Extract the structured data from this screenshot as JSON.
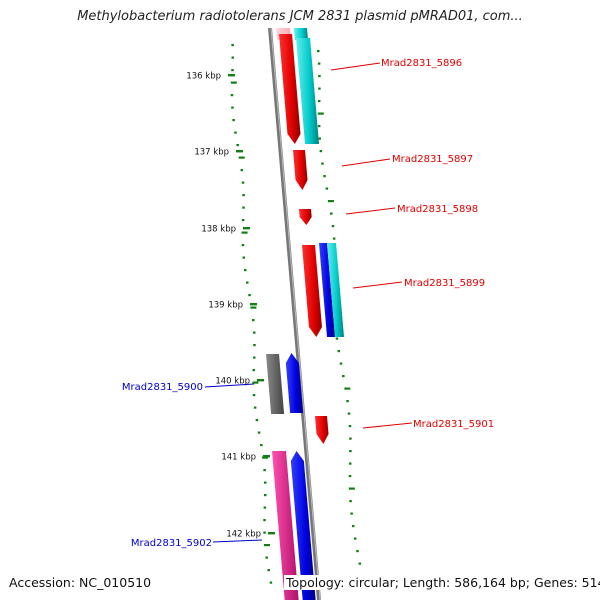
{
  "title": "Methylobacterium radiotolerans JCM 2831 plasmid pMRAD01, com...",
  "footer": {
    "accession": "Accession: NC_010510",
    "summary": "Topology: circular; Length: 586,164 bp; Genes: 514"
  },
  "ruler": {
    "unit": "kbp",
    "labels": [
      "136 kbp",
      "137 kbp",
      "138 kbp",
      "139 kbp",
      "140 kbp",
      "141 kbp",
      "142 kbp"
    ]
  },
  "genes": [
    {
      "id": "Mrad2831_5896",
      "strand": "forward",
      "color": "#e00000"
    },
    {
      "id": "Mrad2831_5897",
      "strand": "forward",
      "color": "#e00000"
    },
    {
      "id": "Mrad2831_5898",
      "strand": "forward",
      "color": "#e00000"
    },
    {
      "id": "Mrad2831_5899",
      "strand": "forward",
      "color": "#e00000"
    },
    {
      "id": "Mrad2831_5900",
      "strand": "reverse",
      "color": "#0000cc"
    },
    {
      "id": "Mrad2831_5901",
      "strand": "forward",
      "color": "#e00000"
    },
    {
      "id": "Mrad2831_5902",
      "strand": "reverse",
      "color": "#0000cc"
    }
  ],
  "colors": {
    "forward_gene": "#e00000",
    "reverse_gene": "#0000cc",
    "cog_cyan": "#00c8c8",
    "cog_blue": "#0000dd",
    "cog_gray": "#666666",
    "cog_pink": "#e0208a",
    "cog_light_pink": "#ffc0c8",
    "gc_skew_dots": "#108010",
    "backbone": "#888888"
  }
}
